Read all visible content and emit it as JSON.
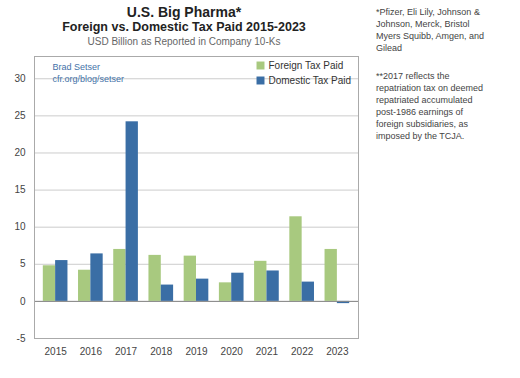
{
  "chart_data": {
    "type": "bar",
    "title": [
      "U.S. Big Pharma*",
      "Foreign vs. Domestic Tax Paid 2015-2023"
    ],
    "subtitle": "USD Billion as Reported in Company 10-Ks",
    "categories": [
      "2015",
      "2016",
      "2017",
      "2018",
      "2019",
      "2020",
      "2021",
      "2022",
      "2023"
    ],
    "series": [
      {
        "name": "Foreign Tax Paid",
        "color": "#a8c97f",
        "values": [
          4.8,
          4.2,
          7.0,
          6.2,
          6.1,
          2.5,
          5.4,
          11.4,
          7.0
        ]
      },
      {
        "name": "Domestic Tax Paid",
        "color": "#3a6ea5",
        "values": [
          5.5,
          6.4,
          24.2,
          2.2,
          3.0,
          3.8,
          4.1,
          2.6,
          -0.3
        ]
      }
    ],
    "ylim": [
      -5,
      33
    ],
    "yticks": [
      -5,
      0,
      5,
      10,
      15,
      20,
      25,
      30
    ],
    "grid": true,
    "legend": "upper right",
    "annotations": [
      "Brad Setser\ncfr.org/blog/setser",
      "*Pfizer, Eli Lily, Johnson &\nJohnson, Merck, Bristol\nMyers Squibb, Amgen, and\nGilead",
      "**2017 reflects the\nrepatriation tax on deemed\nrepatriated accumulated\npost-1986 earnings of\nforeign subsidiaries, as\nimposed by the TCJA."
    ]
  }
}
